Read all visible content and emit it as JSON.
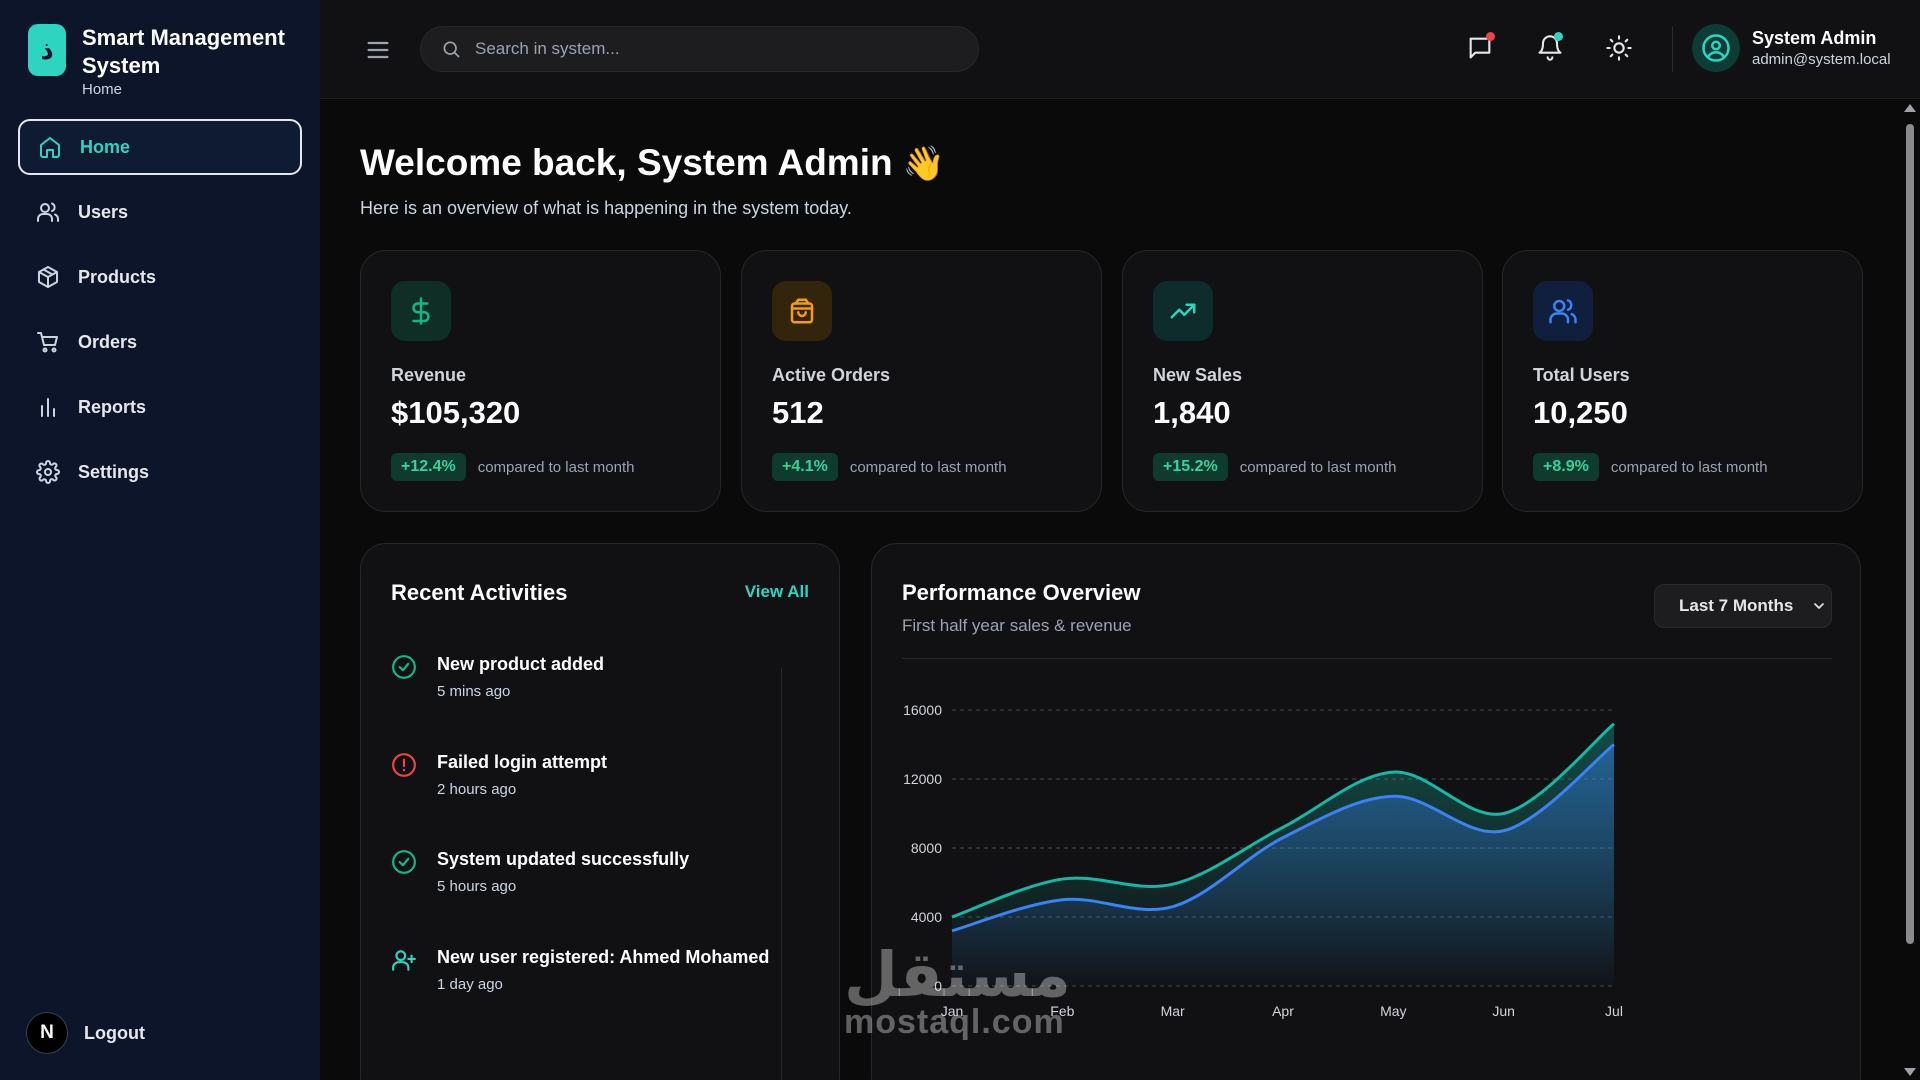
{
  "brand": {
    "logo_letter": "ذ",
    "title": "Smart Management System",
    "page": "Home"
  },
  "sidebar": {
    "items": [
      {
        "label": "Home",
        "icon": "home-icon",
        "active": true
      },
      {
        "label": "Users",
        "icon": "users-icon"
      },
      {
        "label": "Products",
        "icon": "box-icon"
      },
      {
        "label": "Orders",
        "icon": "cart-icon"
      },
      {
        "label": "Reports",
        "icon": "bar-chart-icon"
      },
      {
        "label": "Settings",
        "icon": "gear-icon"
      }
    ],
    "logout_label": "Logout",
    "logout_avatar": "N"
  },
  "topbar": {
    "search_placeholder": "Search in system...",
    "user_name": "System Admin",
    "user_email": "admin@system.local"
  },
  "welcome": {
    "title": "Welcome back, System Admin",
    "emoji": "👋",
    "subtitle": "Here is an overview of what is happening in the system today."
  },
  "stats": [
    {
      "label": "Revenue",
      "value": "$105,320",
      "change": "+12.4%",
      "compare": "compared to last month",
      "icon": "dollar-icon",
      "color": "#10b981"
    },
    {
      "label": "Active Orders",
      "value": "512",
      "change": "+4.1%",
      "compare": "compared to last month",
      "icon": "shopping-bag-icon",
      "color": "#f59e0b"
    },
    {
      "label": "New Sales",
      "value": "1,840",
      "change": "+15.2%",
      "compare": "compared to last month",
      "icon": "trending-up-icon",
      "color": "#2dd4bf"
    },
    {
      "label": "Total Users",
      "value": "10,250",
      "change": "+8.9%",
      "compare": "compared to last month",
      "icon": "users-icon",
      "color": "#3b82f6"
    }
  ],
  "activities": {
    "title": "Recent Activities",
    "view_all": "View All",
    "items": [
      {
        "text": "New product added",
        "time": "5 mins ago",
        "icon": "check-circle-icon",
        "color": "#10b981"
      },
      {
        "text": "Failed login attempt",
        "time": "2 hours ago",
        "icon": "alert-circle-icon",
        "color": "#ef4444"
      },
      {
        "text": "System updated successfully",
        "time": "5 hours ago",
        "icon": "check-circle-icon",
        "color": "#10b981"
      },
      {
        "text": "New user registered: Ahmed Mohamed",
        "time": "1 day ago",
        "icon": "user-plus-icon",
        "color": "#2dd4bf"
      }
    ]
  },
  "performance": {
    "title": "Performance Overview",
    "subtitle": "First half year sales & revenue",
    "range": "Last 7 Months"
  },
  "chart_data": {
    "type": "area",
    "x": [
      "Jan",
      "Feb",
      "Mar",
      "Apr",
      "May",
      "Jun",
      "Jul"
    ],
    "yticks": [
      0,
      4000,
      8000,
      12000,
      16000
    ],
    "ylim": [
      0,
      16000
    ],
    "grid": true,
    "series": [
      {
        "values": [
          4000,
          6200,
          5900,
          9200,
          12400,
          10000,
          15200
        ],
        "color": "#14b8a6"
      },
      {
        "values": [
          3200,
          5000,
          4600,
          8600,
          11000,
          9000,
          14000
        ],
        "color": "#3b82f6"
      }
    ]
  },
  "watermark": {
    "arabic": "مستقل",
    "latin": "mostaql.com"
  }
}
